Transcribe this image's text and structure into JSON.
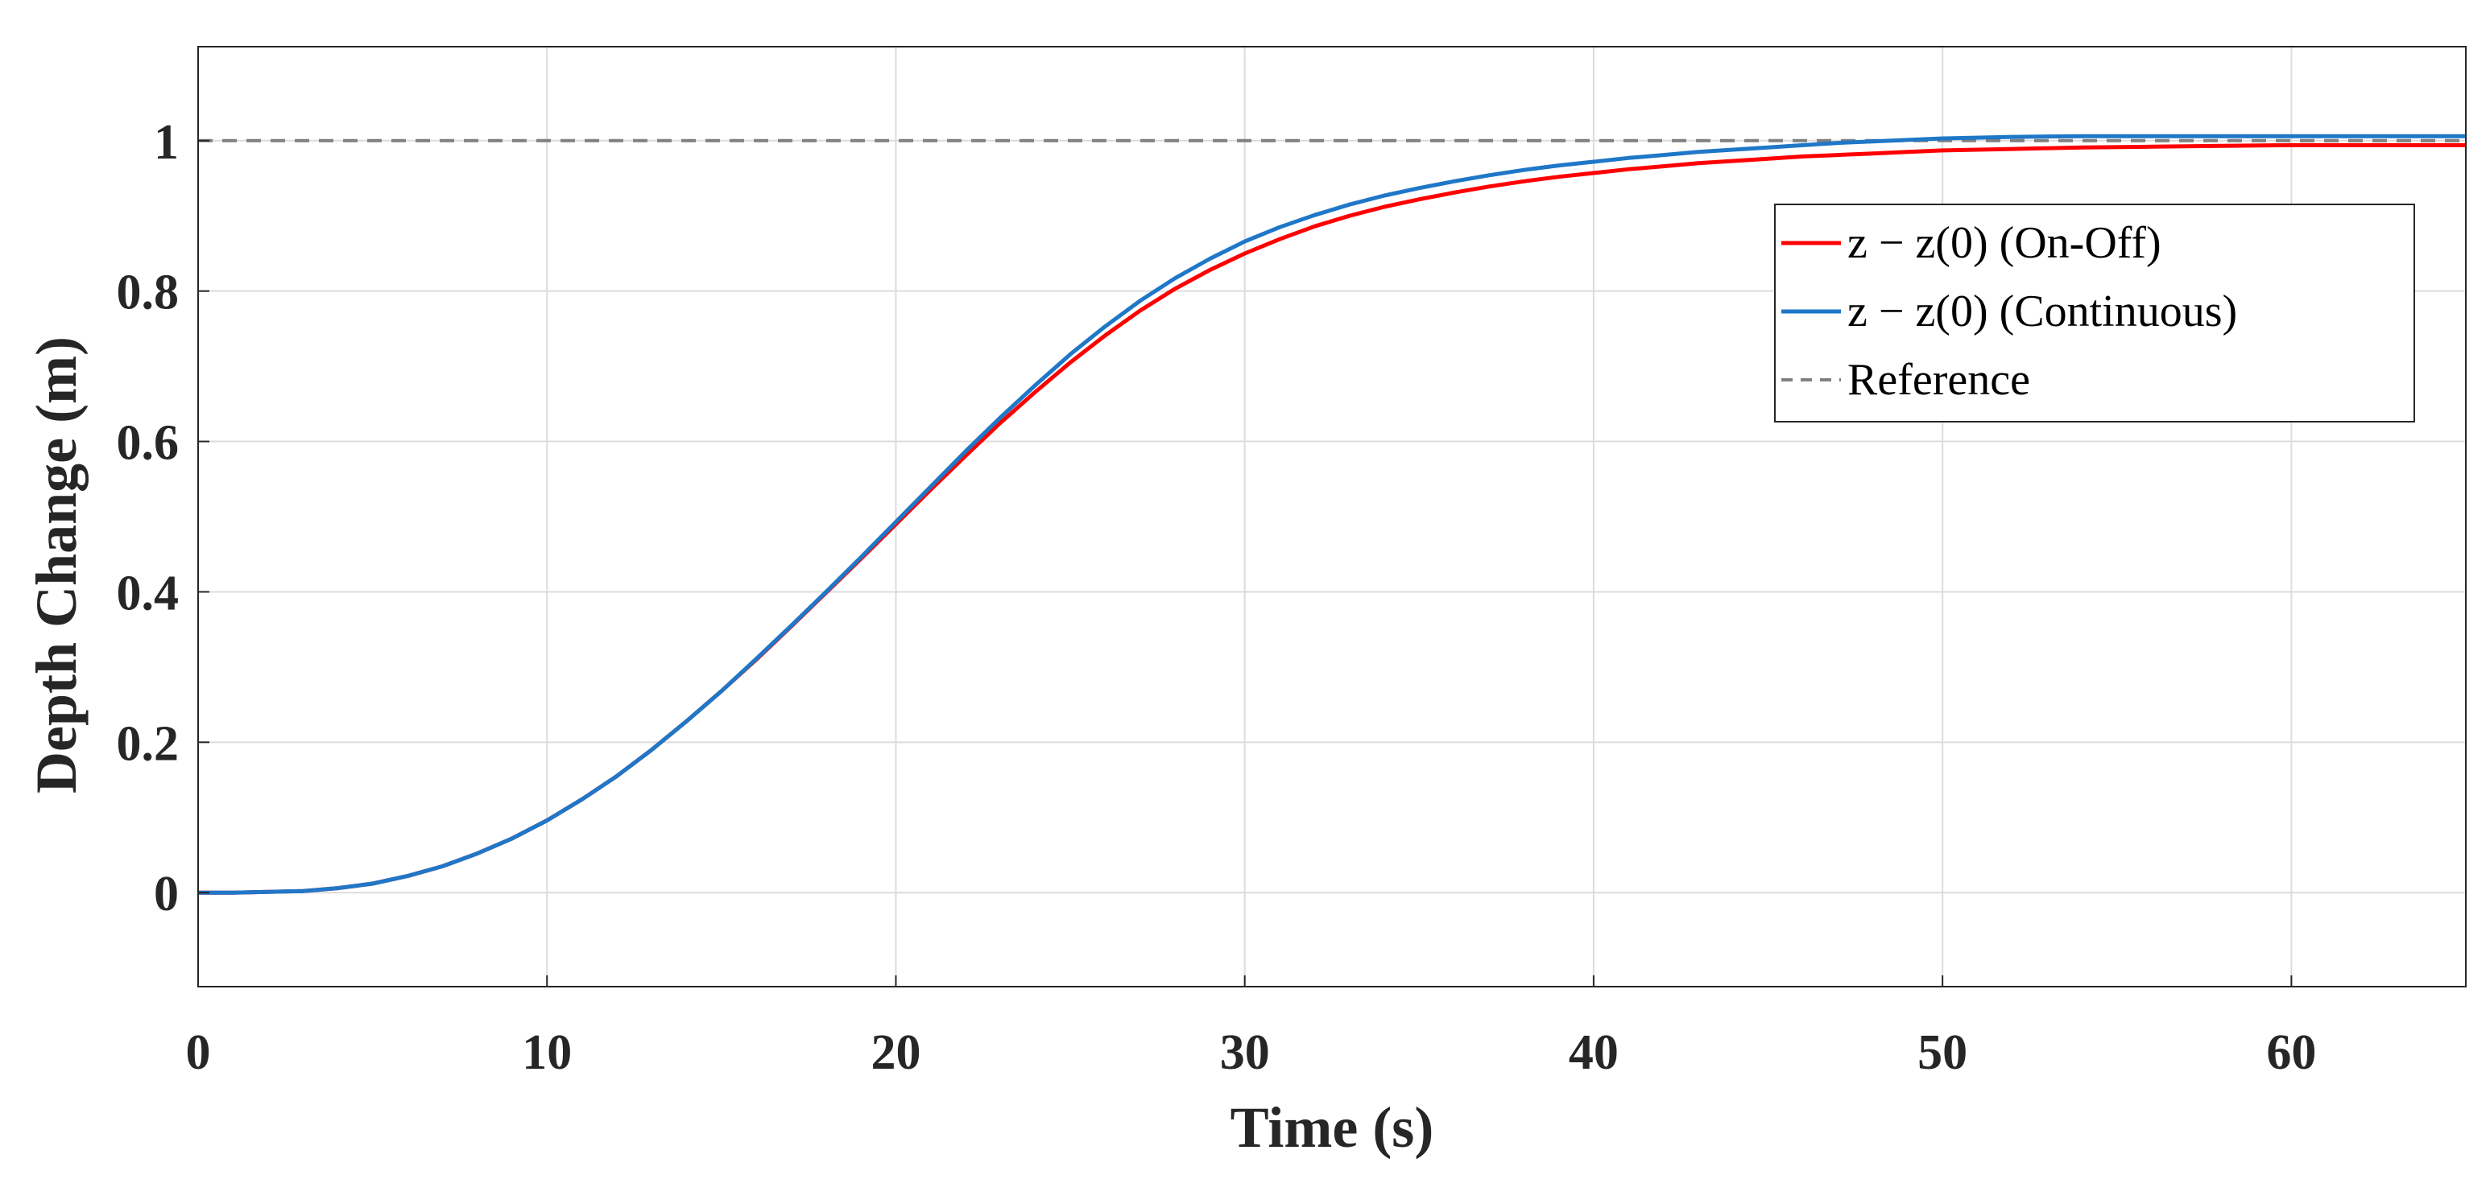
{
  "chart_data": {
    "type": "line",
    "title": "",
    "xlabel": "Time (s)",
    "ylabel": "Depth Change (m)",
    "xlim": [
      0,
      65
    ],
    "ylim": [
      -0.125,
      1.125
    ],
    "xticks": [
      0,
      10,
      20,
      30,
      40,
      50,
      60
    ],
    "yticks": [
      0,
      0.2,
      0.4,
      0.6,
      0.8,
      1
    ],
    "xtick_labels": [
      "0",
      "10",
      "20",
      "30",
      "40",
      "50",
      "60"
    ],
    "ytick_labels": [
      "0",
      "0.2",
      "0.4",
      "0.6",
      "0.8",
      "1"
    ],
    "grid": true,
    "legend_position": "top-right",
    "x": [
      0,
      1,
      2,
      3,
      4,
      5,
      6,
      7,
      8,
      9,
      10,
      11,
      12,
      13,
      14,
      15,
      16,
      17,
      18,
      19,
      20,
      21,
      22,
      23,
      24,
      25,
      26,
      27,
      28,
      29,
      30,
      31,
      32,
      33,
      34,
      35,
      36,
      37,
      38,
      39,
      40,
      41,
      42,
      43,
      44,
      45,
      46,
      47,
      48,
      49,
      50,
      52,
      54,
      56,
      58,
      60,
      62,
      65
    ],
    "series": [
      {
        "name": "z − z(0) (On-Off)",
        "color": "#ff0000",
        "style": "solid",
        "values": [
          0,
          0,
          0.001,
          0.002,
          0.006,
          0.012,
          0.022,
          0.035,
          0.052,
          0.072,
          0.096,
          0.124,
          0.155,
          0.19,
          0.228,
          0.268,
          0.31,
          0.354,
          0.399,
          0.444,
          0.49,
          0.536,
          0.581,
          0.625,
          0.666,
          0.705,
          0.741,
          0.774,
          0.803,
          0.828,
          0.85,
          0.869,
          0.886,
          0.9,
          0.912,
          0.922,
          0.931,
          0.939,
          0.946,
          0.952,
          0.957,
          0.962,
          0.966,
          0.97,
          0.973,
          0.976,
          0.979,
          0.981,
          0.983,
          0.985,
          0.987,
          0.989,
          0.991,
          0.992,
          0.993,
          0.994,
          0.994,
          0.994
        ]
      },
      {
        "name": "z − z(0) (Continuous)",
        "color": "#1f77c8",
        "style": "solid",
        "values": [
          0,
          0,
          0.001,
          0.002,
          0.006,
          0.012,
          0.022,
          0.035,
          0.052,
          0.072,
          0.096,
          0.124,
          0.155,
          0.19,
          0.228,
          0.268,
          0.311,
          0.355,
          0.4,
          0.446,
          0.493,
          0.54,
          0.587,
          0.632,
          0.675,
          0.716,
          0.753,
          0.787,
          0.817,
          0.843,
          0.866,
          0.885,
          0.901,
          0.915,
          0.927,
          0.937,
          0.946,
          0.954,
          0.961,
          0.967,
          0.972,
          0.977,
          0.981,
          0.985,
          0.988,
          0.991,
          0.994,
          0.997,
          0.999,
          1.001,
          1.003,
          1.005,
          1.006,
          1.006,
          1.006,
          1.006,
          1.006,
          1.006
        ]
      },
      {
        "name": "Reference",
        "color": "#808080",
        "style": "dashed",
        "values": [
          1,
          1,
          1,
          1,
          1,
          1,
          1,
          1,
          1,
          1,
          1,
          1,
          1,
          1,
          1,
          1,
          1,
          1,
          1,
          1,
          1,
          1,
          1,
          1,
          1,
          1,
          1,
          1,
          1,
          1,
          1,
          1,
          1,
          1,
          1,
          1,
          1,
          1,
          1,
          1,
          1,
          1,
          1,
          1,
          1,
          1,
          1,
          1,
          1,
          1,
          1,
          1,
          1,
          1,
          1,
          1,
          1,
          1
        ]
      }
    ],
    "legend": [
      {
        "label": "z − z(0) (On-Off)",
        "color": "#ff0000",
        "style": "solid"
      },
      {
        "label": "z − z(0) (Continuous)",
        "color": "#1f77c8",
        "style": "solid"
      },
      {
        "label": "Reference",
        "color": "#808080",
        "style": "dashed"
      }
    ]
  }
}
